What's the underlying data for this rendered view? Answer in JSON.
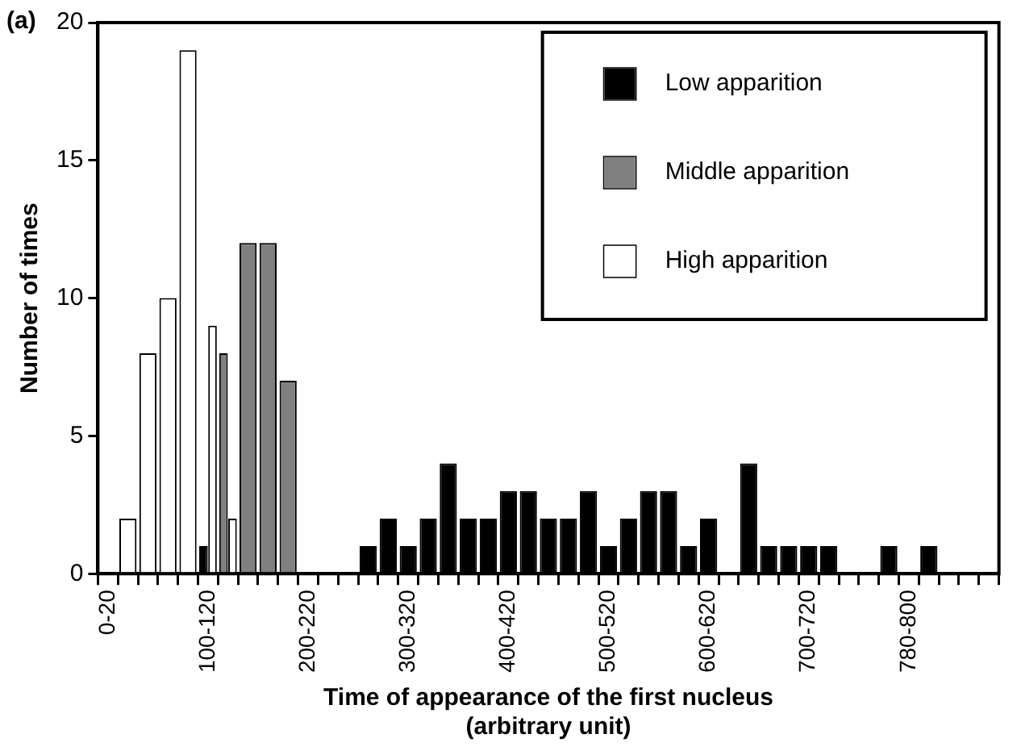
{
  "chart_data": {
    "type": "bar",
    "xlabel": "Time of appearance of the first nucleus\n(arbitrary unit)",
    "ylabel": "Number of times",
    "annotations": [
      "(a)"
    ],
    "categories": [
      "0-20",
      null,
      null,
      null,
      null,
      "100-120",
      null,
      null,
      null,
      null,
      "200-220",
      null,
      null,
      null,
      null,
      "300-320",
      null,
      null,
      null,
      null,
      "400-420",
      null,
      null,
      null,
      null,
      "500-520",
      null,
      null,
      null,
      null,
      "600-620",
      null,
      null,
      null,
      null,
      "700-720",
      null,
      null,
      null,
      null,
      "780-800",
      null,
      null,
      null,
      null
    ],
    "series": [
      {
        "name": "Low apparition",
        "color": "#000000",
        "values": [
          null,
          null,
          null,
          null,
          null,
          1,
          null,
          null,
          null,
          null,
          null,
          null,
          null,
          1,
          2,
          1,
          2,
          4,
          2,
          2,
          3,
          3,
          2,
          2,
          3,
          1,
          2,
          3,
          3,
          1,
          2,
          null,
          4,
          1,
          1,
          1,
          1,
          null,
          null,
          1,
          null,
          1,
          null,
          null,
          null
        ]
      },
      {
        "name": "Middle apparition",
        "color": "#808080",
        "values": [
          null,
          null,
          null,
          null,
          null,
          null,
          8,
          12,
          12,
          7,
          null,
          null,
          null,
          null,
          null,
          null,
          null,
          null,
          null,
          null,
          null,
          null,
          null,
          null,
          null,
          null,
          null,
          null,
          null,
          null,
          null,
          null,
          null,
          null,
          null,
          null,
          null,
          null,
          null,
          null,
          null,
          null,
          null,
          null,
          null
        ]
      },
      {
        "name": "High apparition",
        "color": "#ffffff",
        "values": [
          null,
          2,
          8,
          10,
          19,
          9,
          2,
          null,
          null,
          null,
          null,
          null,
          null,
          null,
          null,
          null,
          null,
          null,
          null,
          null,
          null,
          null,
          null,
          null,
          null,
          null,
          null,
          null,
          null,
          null,
          null,
          null,
          null,
          null,
          null,
          null,
          null,
          null,
          null,
          null,
          null,
          null,
          null,
          null,
          null
        ]
      }
    ],
    "ylim": [
      0,
      20
    ],
    "yticks": [
      0,
      5,
      10,
      15,
      20
    ],
    "grid": false,
    "legend": "top right"
  }
}
